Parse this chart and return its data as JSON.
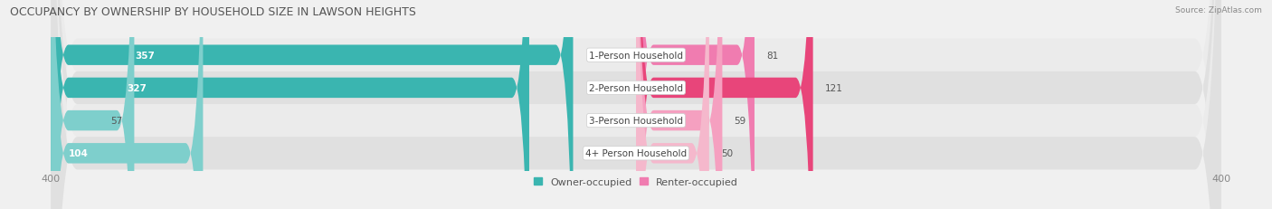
{
  "title": "OCCUPANCY BY OWNERSHIP BY HOUSEHOLD SIZE IN LAWSON HEIGHTS",
  "source": "Source: ZipAtlas.com",
  "categories": [
    "1-Person Household",
    "2-Person Household",
    "3-Person Household",
    "4+ Person Household"
  ],
  "owner_values": [
    357,
    327,
    57,
    104
  ],
  "renter_values": [
    81,
    121,
    59,
    50
  ],
  "owner_colors": [
    "#3ab5b0",
    "#3ab5b0",
    "#7ecfcc",
    "#7ecfcc"
  ],
  "renter_colors": [
    "#f07cb0",
    "#e8457a",
    "#f5a0c0",
    "#f5b8cc"
  ],
  "row_bg_colors": [
    "#ebebeb",
    "#e0e0e0",
    "#ebebeb",
    "#e0e0e0"
  ],
  "x_max": 400,
  "title_fontsize": 9,
  "tick_fontsize": 8,
  "legend_fontsize": 8,
  "figsize": [
    14.06,
    2.32
  ],
  "dpi": 100
}
